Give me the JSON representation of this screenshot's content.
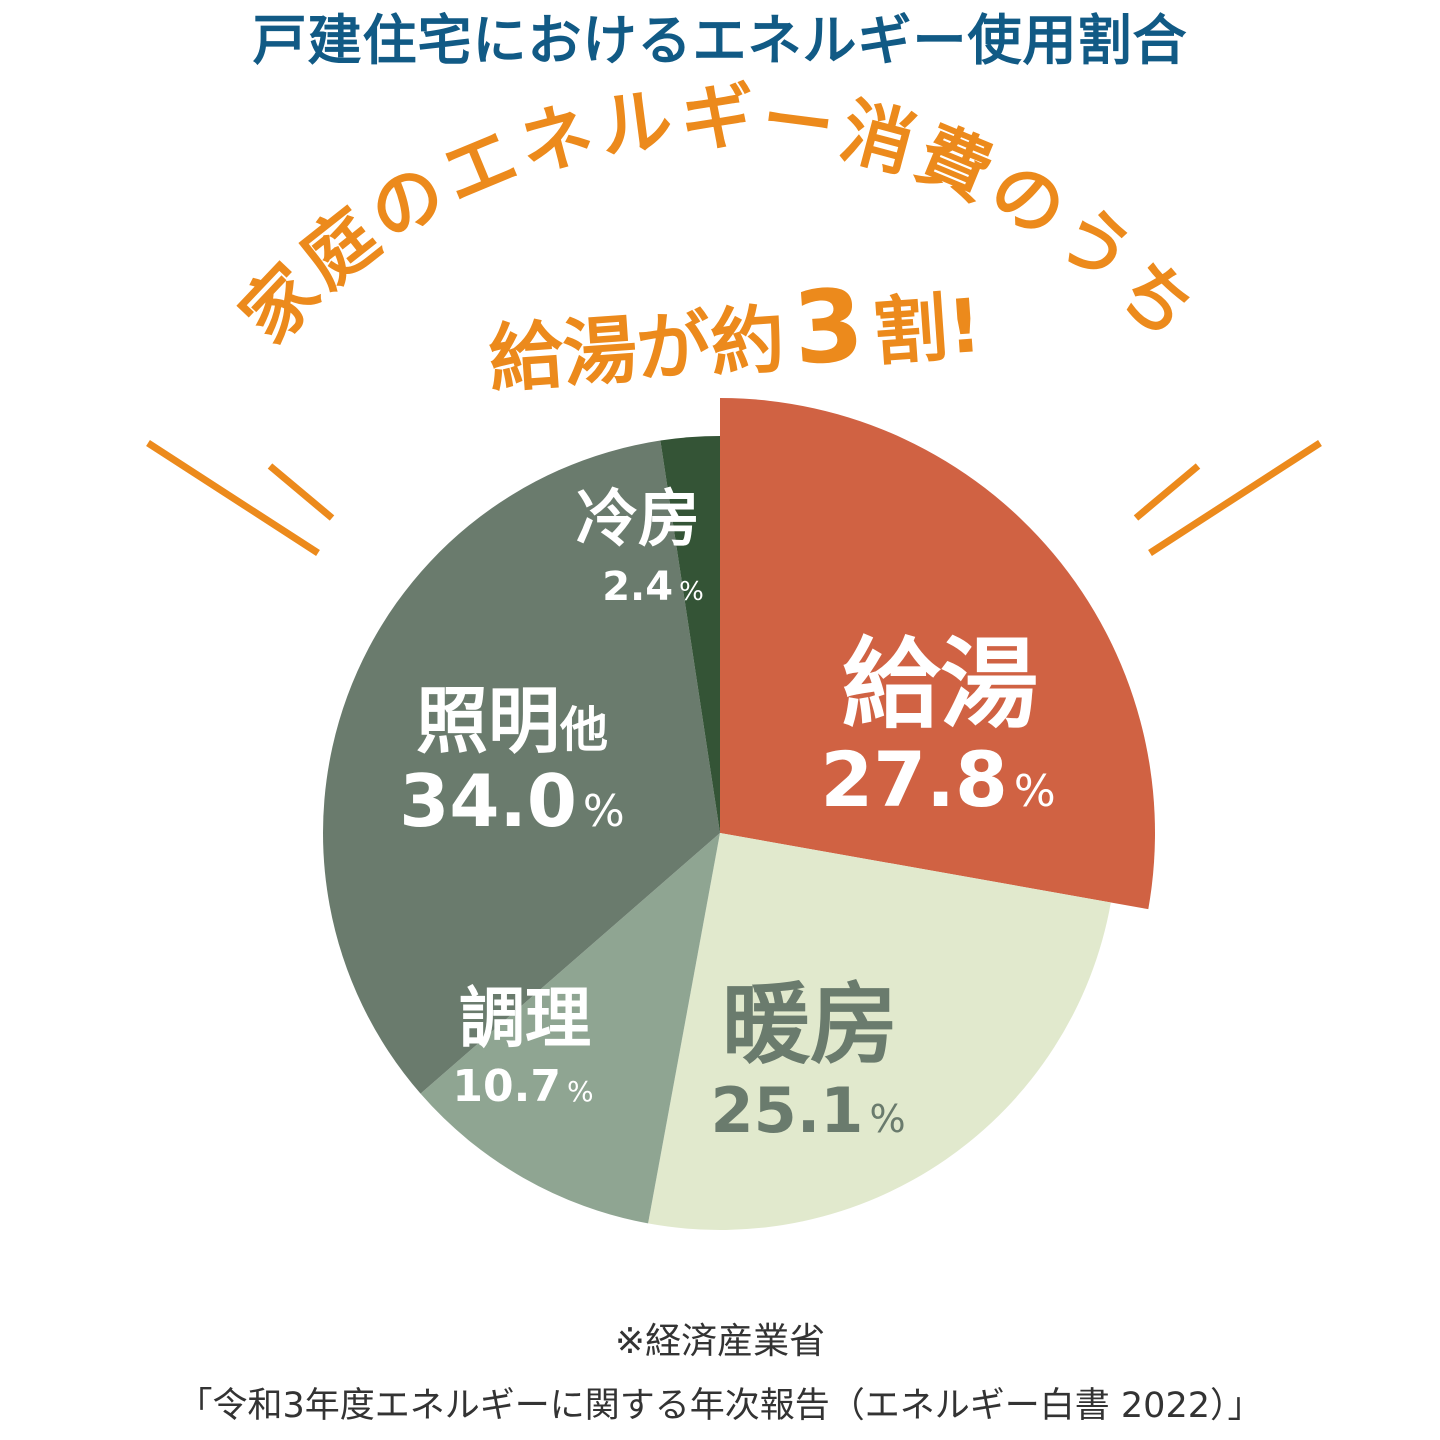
{
  "title": "戸建住宅におけるエネルギー使用割合",
  "colors": {
    "title": "#115a85",
    "accent": "#ec8a1c",
    "slice_kyuto": "#d06243",
    "slice_danbo": "#e1e9cd",
    "slice_chori": "#8fa592",
    "slice_shomei": "#6a7b6d",
    "slice_reibo": "#345436"
  },
  "headline": {
    "line1": "家庭のエネルギー消費のうち",
    "line2_prefix": "給湯が約",
    "line2_number": "3",
    "line2_suffix": "割!"
  },
  "chart_data": {
    "type": "pie",
    "title": "戸建住宅におけるエネルギー使用割合",
    "unit": "%",
    "exploded": "給湯",
    "slices": [
      {
        "label": "給湯",
        "value": 27.8,
        "value_text": "27.8",
        "color": "#d06243",
        "text_color": "#ffffff"
      },
      {
        "label": "暖房",
        "value": 25.1,
        "value_text": "25.1",
        "color": "#e1e9cd",
        "text_color": "#6a7b6d"
      },
      {
        "label": "調理",
        "value": 10.7,
        "value_text": "10.7",
        "color": "#8fa592",
        "text_color": "#ffffff"
      },
      {
        "label": "照明他",
        "value": 34.0,
        "value_text": "34.0",
        "color": "#6a7b6d",
        "text_color": "#ffffff"
      },
      {
        "label": "冷房",
        "value": 2.4,
        "value_text": "2.4",
        "color": "#345436",
        "text_color": "#ffffff"
      }
    ]
  },
  "source": {
    "line1": "※経済産業省",
    "line2": "「令和3年度エネルギーに関する年次報告（エネルギー白書 2022）」"
  }
}
